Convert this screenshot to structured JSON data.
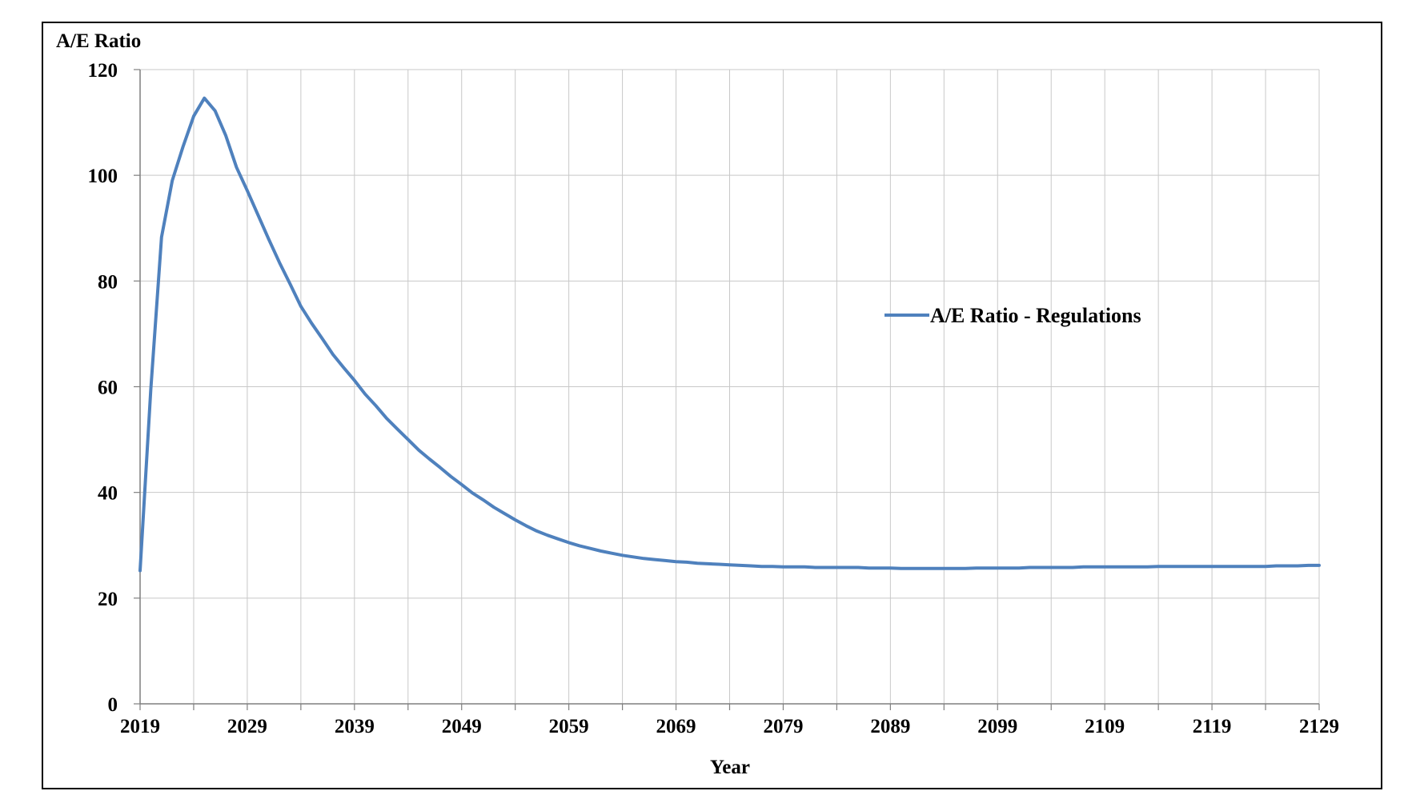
{
  "chart_data": {
    "type": "line",
    "title": "",
    "ylabel": "A/E Ratio",
    "xlabel": "Year",
    "xlim": [
      2019,
      2129
    ],
    "ylim": [
      0,
      120
    ],
    "x_ticks": [
      2019,
      2029,
      2039,
      2049,
      2059,
      2069,
      2079,
      2089,
      2099,
      2109,
      2119,
      2129
    ],
    "y_ticks": [
      0,
      20,
      40,
      60,
      80,
      100,
      120
    ],
    "grid": true,
    "legend_position": "center-right",
    "series": [
      {
        "name": "A/E Ratio - Regulations",
        "color": "#4f81bd",
        "x": [
          2019,
          2020,
          2021,
          2022,
          2023,
          2024,
          2025,
          2026,
          2027,
          2028,
          2029,
          2030,
          2031,
          2032,
          2033,
          2034,
          2035,
          2036,
          2037,
          2038,
          2039,
          2040,
          2041,
          2042,
          2043,
          2044,
          2045,
          2046,
          2047,
          2048,
          2049,
          2050,
          2051,
          2052,
          2053,
          2054,
          2055,
          2056,
          2057,
          2058,
          2059,
          2060,
          2061,
          2062,
          2063,
          2064,
          2065,
          2066,
          2067,
          2068,
          2069,
          2070,
          2071,
          2072,
          2073,
          2074,
          2075,
          2076,
          2077,
          2078,
          2079,
          2080,
          2081,
          2082,
          2083,
          2084,
          2085,
          2086,
          2087,
          2088,
          2089,
          2090,
          2091,
          2092,
          2093,
          2094,
          2095,
          2096,
          2097,
          2098,
          2099,
          2100,
          2101,
          2102,
          2103,
          2104,
          2105,
          2106,
          2107,
          2108,
          2109,
          2110,
          2111,
          2112,
          2113,
          2114,
          2115,
          2116,
          2117,
          2118,
          2119,
          2120,
          2121,
          2122,
          2123,
          2124,
          2125,
          2126,
          2127,
          2128,
          2129
        ],
        "values": [
          25.2,
          59.5,
          88.3,
          99.0,
          105.4,
          111.2,
          114.6,
          112.2,
          107.5,
          101.5,
          97.1,
          92.5,
          87.9,
          83.5,
          79.4,
          75.2,
          72.0,
          69.1,
          66.1,
          63.6,
          61.2,
          58.6,
          56.4,
          54.0,
          52.0,
          50.0,
          48.0,
          46.3,
          44.7,
          43.0,
          41.5,
          39.9,
          38.6,
          37.2,
          36.0,
          34.8,
          33.7,
          32.7,
          31.9,
          31.2,
          30.5,
          29.9,
          29.4,
          28.9,
          28.5,
          28.1,
          27.8,
          27.5,
          27.3,
          27.1,
          26.9,
          26.8,
          26.6,
          26.5,
          26.4,
          26.3,
          26.2,
          26.1,
          26.0,
          26.0,
          25.9,
          25.9,
          25.9,
          25.8,
          25.8,
          25.8,
          25.8,
          25.8,
          25.7,
          25.7,
          25.7,
          25.6,
          25.6,
          25.6,
          25.6,
          25.6,
          25.6,
          25.6,
          25.7,
          25.7,
          25.7,
          25.7,
          25.7,
          25.8,
          25.8,
          25.8,
          25.8,
          25.8,
          25.9,
          25.9,
          25.9,
          25.9,
          25.9,
          25.9,
          25.9,
          26.0,
          26.0,
          26.0,
          26.0,
          26.0,
          26.0,
          26.0,
          26.0,
          26.0,
          26.0,
          26.0,
          26.1,
          26.1,
          26.1,
          26.2,
          26.2
        ]
      }
    ]
  }
}
